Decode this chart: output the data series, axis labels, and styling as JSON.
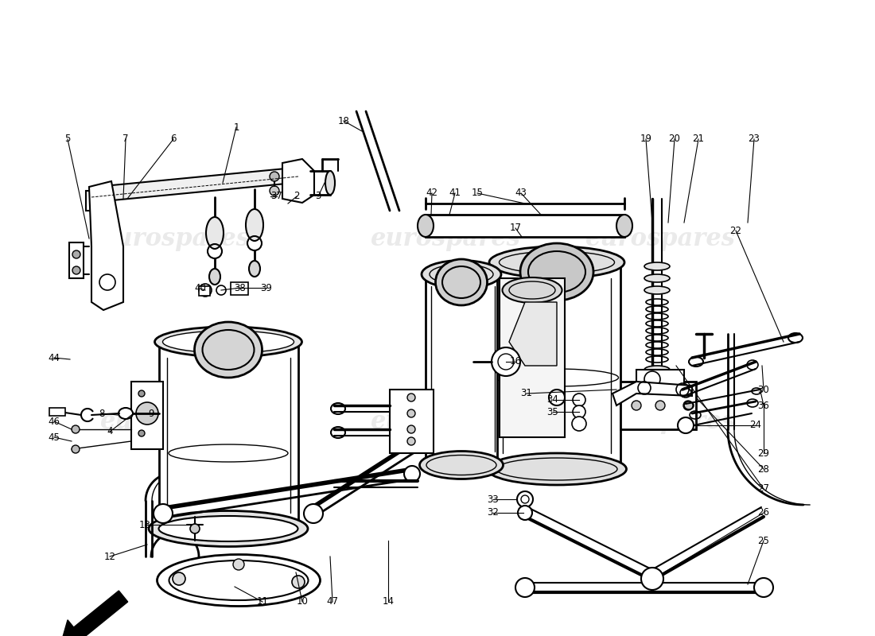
{
  "background_color": "#ffffff",
  "watermark_text": "eurospares",
  "watermark_color": "#cccccc",
  "line_color": "#000000",
  "label_color": "#000000",
  "label_fontsize": 8.5,
  "fig_width": 11.0,
  "fig_height": 8.0
}
